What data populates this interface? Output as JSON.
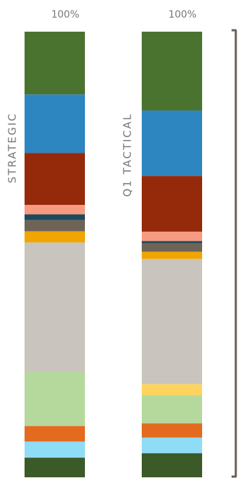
{
  "chart_data": {
    "type": "stacked-bar",
    "categories": [
      "STRATEGIC",
      "Q1 TACTICAL"
    ],
    "totals": [
      100,
      100
    ],
    "total_labels": [
      "100%",
      "100%"
    ],
    "ylim": [
      0,
      100
    ],
    "series": [
      {
        "color": "#4b7330",
        "values": [
          14.1,
          17.7
        ]
      },
      {
        "color": "#2e86c1",
        "values": [
          13.1,
          14.7
        ]
      },
      {
        "color": "#952a0b",
        "values": [
          11.7,
          12.5
        ]
      },
      {
        "color": "#f79a82",
        "values": [
          2.1,
          2.1
        ]
      },
      {
        "color": "#1b4a5a",
        "values": [
          1.3,
          0.5
        ]
      },
      {
        "color": "#6e6456",
        "values": [
          2.5,
          1.9
        ]
      },
      {
        "color": "#f0a500",
        "values": [
          2.5,
          1.6
        ]
      },
      {
        "color": "#c9c4bd",
        "values": [
          29.0,
          28.1
        ]
      },
      {
        "color": "#ffd45e",
        "values": [
          0,
          2.5
        ]
      },
      {
        "color": "#b5d99c",
        "values": [
          12.2,
          6.3
        ]
      },
      {
        "color": "#e36b1f",
        "values": [
          3.5,
          3.2
        ]
      },
      {
        "color": "#8fdcf7",
        "values": [
          3.6,
          3.5
        ]
      },
      {
        "color": "#3b5a27",
        "values": [
          4.4,
          5.4
        ]
      }
    ]
  }
}
